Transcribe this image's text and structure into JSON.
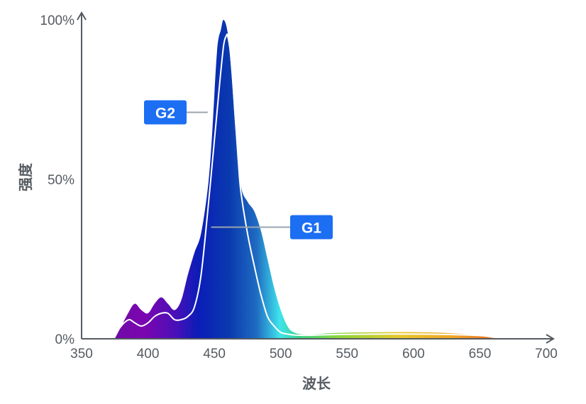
{
  "chart_data": {
    "type": "area",
    "xlabel": "波长",
    "ylabel": "强度",
    "xlim": [
      350,
      700
    ],
    "ylim": [
      0,
      100
    ],
    "x_ticks": [
      350,
      400,
      450,
      500,
      550,
      600,
      650,
      700
    ],
    "y_ticks": [
      {
        "value": 0,
        "label": "0%"
      },
      {
        "value": 50,
        "label": "50%"
      },
      {
        "value": 100,
        "label": "100%"
      }
    ],
    "grid": false,
    "series": [
      {
        "name": "G2",
        "style": "filled spectrum area",
        "x": [
          375,
          380,
          385,
          390,
          395,
          400,
          405,
          410,
          415,
          420,
          425,
          430,
          435,
          440,
          445,
          448,
          452,
          455,
          457,
          460,
          463,
          466,
          470,
          475,
          480,
          485,
          490,
          495,
          500,
          505,
          510,
          520,
          540,
          560,
          580,
          600,
          620,
          640,
          655,
          663
        ],
        "y": [
          0,
          4,
          8,
          11,
          9,
          8,
          11,
          13,
          11,
          9,
          12,
          20,
          27,
          33,
          47,
          62,
          90,
          97,
          100,
          96,
          83,
          65,
          48,
          43,
          40,
          34,
          25,
          16,
          9,
          4,
          2,
          1.3,
          1.8,
          2,
          2.1,
          2.1,
          1.9,
          1.4,
          0.7,
          0
        ]
      },
      {
        "name": "G1",
        "style": "white line",
        "x": [
          378,
          382,
          386,
          390,
          395,
          400,
          405,
          410,
          415,
          420,
          425,
          430,
          435,
          440,
          445,
          450,
          454,
          457,
          459,
          460,
          462,
          464,
          466,
          468,
          470,
          475,
          480,
          485,
          490,
          495,
          500,
          505,
          510,
          520,
          540,
          580,
          620,
          650,
          660
        ],
        "y": [
          3,
          5,
          6,
          5,
          4,
          5,
          7,
          8,
          8,
          6,
          6,
          7,
          10,
          20,
          40,
          62,
          80,
          92,
          95,
          95,
          90,
          80,
          68,
          56,
          46,
          33,
          23,
          14,
          7,
          4,
          2,
          1.5,
          1.2,
          1.1,
          1.3,
          1.5,
          1.4,
          1,
          0.5
        ]
      }
    ],
    "annotations": [
      {
        "label": "G2",
        "target_series": "G2",
        "x": 445,
        "y": 71
      },
      {
        "label": "G1",
        "target_series": "G1",
        "x": 470,
        "y": 35
      }
    ],
    "colors": {
      "axis": "#555b61",
      "badge": "#1c6ef2",
      "leader": "#9aa4ae",
      "line_g1": "#ffffff",
      "spectrum_stops": [
        "#6f0aa6",
        "#7b06b0",
        "#3a10b8",
        "#0a1db8",
        "#0a3aae",
        "#1f6bc2",
        "#3fe4ec",
        "#39d28a",
        "#8ad63c",
        "#e6c82a",
        "#f0a428",
        "#e8661c"
      ]
    }
  }
}
